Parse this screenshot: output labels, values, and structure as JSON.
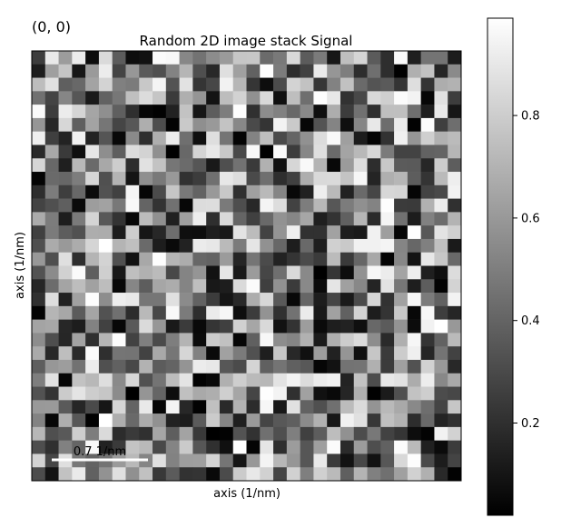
{
  "index_label": "(0, 0)",
  "colors": {
    "index_label": "#ff0000",
    "scalebar": "#ffffff"
  },
  "chart_data": {
    "type": "heatmap",
    "title": "Random 2D image stack Signal",
    "xlabel": "axis (1/nm)",
    "ylabel": "axis (1/nm)",
    "colormap": "gray",
    "grid": false,
    "matrix_size": [
      32,
      32
    ],
    "value_range": [
      0,
      1
    ],
    "scalebar_label": "0.7 1/nm",
    "colorbar": {
      "ticks": [
        0.2,
        0.4,
        0.6,
        0.8
      ],
      "tick_labels": [
        "0.2",
        "0.4",
        "0.6",
        "0.8"
      ],
      "range": [
        0.02,
        0.99
      ]
    },
    "seed": 7,
    "values": []
  }
}
